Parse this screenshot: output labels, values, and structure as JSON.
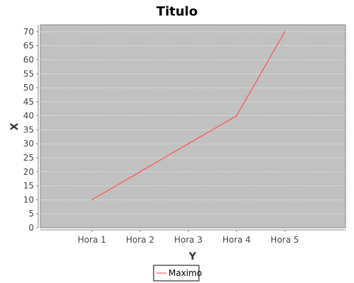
{
  "chart_data": {
    "type": "line",
    "title": "Titulo",
    "xlabel": "Y",
    "ylabel": "X",
    "categories": [
      "Hora 1",
      "Hora 2",
      "Hora 3",
      "Hora 4",
      "Hora 5"
    ],
    "series": [
      {
        "name": "Maximo",
        "values": [
          10,
          20,
          30,
          40,
          70
        ],
        "color": "#ff5555"
      }
    ],
    "ylim": [
      0,
      72.5
    ],
    "yticks": [
      0,
      5,
      10,
      15,
      20,
      25,
      30,
      35,
      40,
      45,
      50,
      55,
      60,
      65,
      70
    ],
    "grid": true,
    "legend_position": "bottom-center",
    "colors": {
      "plot_background": "#c0c0c0",
      "grid": "#ffffff",
      "axis": "#888888"
    }
  }
}
